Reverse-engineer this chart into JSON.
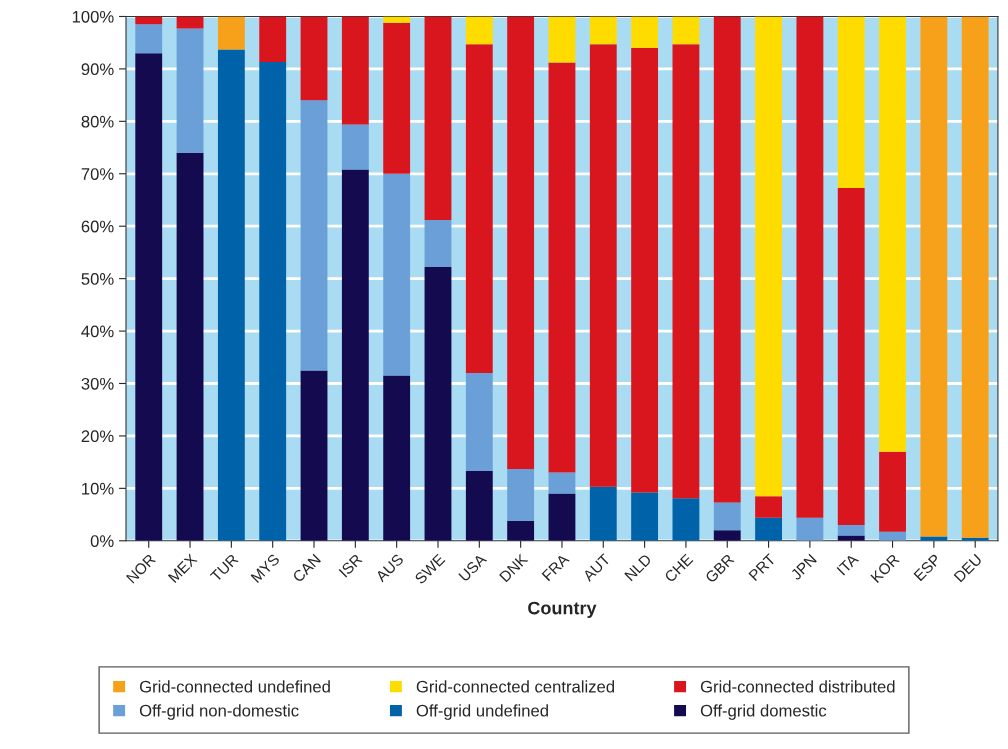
{
  "chart_data": {
    "type": "bar",
    "stacked": true,
    "xlabel": "Country",
    "categories": [
      "NOR",
      "MEX",
      "TUR",
      "MYS",
      "CAN",
      "ISR",
      "AUS",
      "SWE",
      "USA",
      "DNK",
      "FRA",
      "AUT",
      "NLD",
      "CHE",
      "GBR",
      "PRT",
      "JPN",
      "ITA",
      "KOR",
      "ESP",
      "DEU"
    ],
    "series": [
      {
        "name": "Off-grid domestic",
        "color": "#140a50",
        "values": [
          93,
          74,
          0,
          0,
          32.5,
          70.8,
          31.5,
          52.2,
          13.3,
          3.8,
          9,
          0,
          0,
          0,
          2,
          0,
          0,
          1,
          0,
          0,
          0
        ]
      },
      {
        "name": "Off-grid undefined",
        "color": "#0062a8",
        "values": [
          0,
          0,
          93.7,
          91.3,
          0,
          0,
          0,
          0,
          0,
          0,
          0,
          10.3,
          9.2,
          8.1,
          0,
          4.4,
          0,
          0,
          0,
          0.8,
          0.6
        ]
      },
      {
        "name": "Off-grid non-domestic",
        "color": "#6a9fd8",
        "values": [
          5.5,
          23.7,
          0,
          0,
          51.5,
          8.6,
          38.5,
          9,
          18.7,
          9.9,
          4,
          0,
          0,
          0,
          5.3,
          0,
          4.4,
          2,
          1.7,
          0,
          0
        ]
      },
      {
        "name": "Grid-connected distributed",
        "color": "#d9161e",
        "values": [
          1.5,
          2.3,
          0,
          8.7,
          16,
          20.6,
          28.8,
          38.8,
          62.7,
          86.3,
          78.2,
          84.4,
          84.8,
          86.6,
          92.7,
          4.1,
          95.6,
          64.3,
          15.3,
          0,
          0
        ]
      },
      {
        "name": "Grid-connected centralized",
        "color": "#ffdc00",
        "values": [
          0,
          0,
          0,
          0,
          0,
          0,
          1.2,
          0,
          5.3,
          0,
          8.8,
          5.3,
          6,
          5.3,
          0,
          91.5,
          0,
          32.7,
          83,
          0,
          0
        ]
      },
      {
        "name": "Grid-connected undefined",
        "color": "#f7a11a",
        "values": [
          0,
          0,
          6.3,
          0,
          0,
          0,
          0,
          0,
          0,
          0,
          0,
          0,
          0,
          0,
          0,
          0,
          0,
          0,
          0,
          99.2,
          99.4
        ]
      }
    ],
    "ylim": [
      0,
      100
    ],
    "yticks": [
      {
        "value": 0,
        "label": "0%"
      },
      {
        "value": 10,
        "label": "10%"
      },
      {
        "value": 20,
        "label": "20%"
      },
      {
        "value": 30,
        "label": "30%"
      },
      {
        "value": 40,
        "label": "40%"
      },
      {
        "value": 50,
        "label": "50%"
      },
      {
        "value": 60,
        "label": "60%"
      },
      {
        "value": 70,
        "label": "70%"
      },
      {
        "value": 80,
        "label": "80%"
      },
      {
        "value": 90,
        "label": "90%"
      },
      {
        "value": 100,
        "label": "100%"
      }
    ],
    "grid": "y",
    "legend": "bottom"
  }
}
